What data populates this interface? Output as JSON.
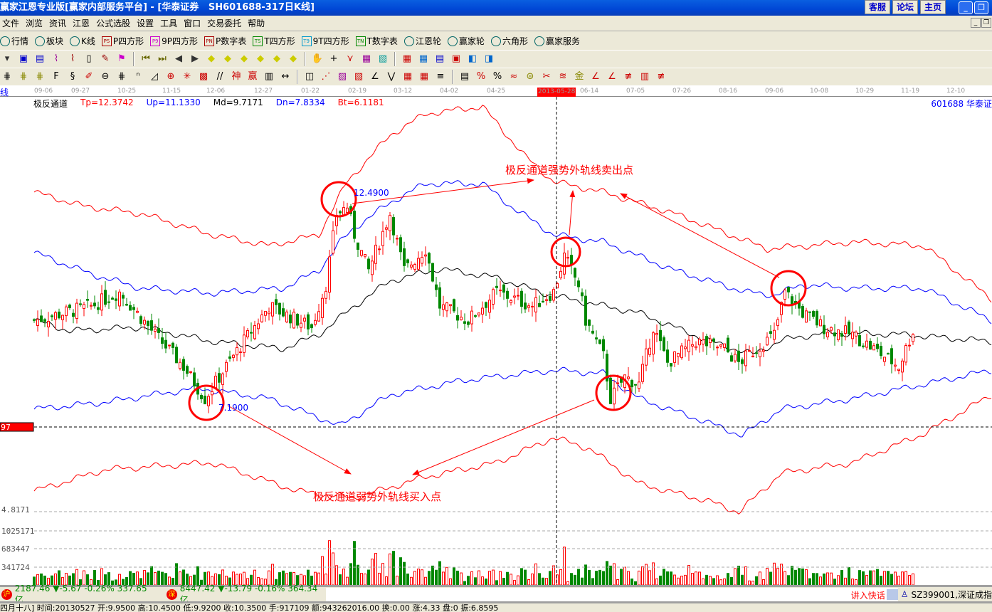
{
  "window": {
    "title": "赢家江恩专业版[赢家内部服务平台] - [华泰证券   SH601688-317日K线]",
    "buttons": [
      "客服",
      "论坛",
      "主页"
    ]
  },
  "menu": [
    "文件",
    "浏览",
    "资讯",
    "江恩",
    "公式选股",
    "设置",
    "工具",
    "窗口",
    "交易委托",
    "帮助"
  ],
  "toolbar1": [
    {
      "icon": "quote-icon",
      "label": "行情"
    },
    {
      "icon": "sector-icon",
      "label": "板块"
    },
    {
      "icon": "kline-icon",
      "label": "K线"
    },
    {
      "icon": "PS",
      "label": "P四方形"
    },
    {
      "icon": "P9",
      "label": "9P四方形"
    },
    {
      "icon": "PN",
      "label": "P数字表"
    },
    {
      "icon": "TS",
      "label": "T四方形"
    },
    {
      "icon": "T9",
      "label": "9T四方形"
    },
    {
      "icon": "TN",
      "label": "T数字表"
    },
    {
      "icon": "gann-wheel-icon",
      "label": "江恩轮"
    },
    {
      "icon": "winner-wheel-icon",
      "label": "赢家轮"
    },
    {
      "icon": "hexagon-icon",
      "label": "六角形"
    },
    {
      "icon": "dollar-icon",
      "label": "赢家服务"
    }
  ],
  "date_axis": {
    "ticks": [
      "09-06",
      "09-27",
      "10-25",
      "11-15",
      "12-06",
      "12-27",
      "01-22",
      "02-19",
      "03-12",
      "04-02",
      "04-25",
      "06-14",
      "07-05",
      "07-26",
      "08-16",
      "09-06",
      "10-08",
      "10-29",
      "11-19",
      "12-10"
    ],
    "cursor_date": "2013-05-28"
  },
  "indicator": {
    "name": "极反通道",
    "tp": "Tp=12.3742",
    "up": "Up=11.1330",
    "md": "Md=9.7171",
    "dn": "Dn=7.8334",
    "bt": "Bt=6.1181",
    "stock": "601688  华泰证",
    "left_label": "线"
  },
  "colors": {
    "up_candle": "#ff0000",
    "down_candle": "#008000",
    "tp_bt": "#ff0000",
    "up_dn": "#0000ff",
    "md": "#000000"
  },
  "annotations": {
    "sell_text": "极反通道强势外轨线卖出点",
    "buy_text": "极反通道弱势外轨线买入点",
    "high_label": "12.4900",
    "low_label": "7.1900",
    "price_cursor": "97",
    "bottom_price": "4.8171"
  },
  "chart_data": {
    "type": "candlestick",
    "price_keypoints": [
      [
        0,
        9.33
      ],
      [
        16,
        9.68
      ],
      [
        24,
        10.03
      ],
      [
        34,
        8.98
      ],
      [
        42,
        8.19
      ],
      [
        48,
        7.4
      ],
      [
        52,
        7.93
      ],
      [
        56,
        8.45
      ],
      [
        66,
        9.68
      ],
      [
        78,
        9.16
      ],
      [
        82,
        10.21
      ],
      [
        85,
        11.96
      ],
      [
        88,
        12.14
      ],
      [
        90,
        11.44
      ],
      [
        94,
        10.56
      ],
      [
        100,
        11.96
      ],
      [
        104,
        10.56
      ],
      [
        110,
        11.09
      ],
      [
        114,
        9.68
      ],
      [
        122,
        9.33
      ],
      [
        130,
        10.03
      ],
      [
        140,
        9.68
      ],
      [
        146,
        10.03
      ],
      [
        149,
        10.91
      ],
      [
        153,
        10.21
      ],
      [
        155,
        9.33
      ],
      [
        160,
        8.45
      ],
      [
        162,
        7.4
      ],
      [
        166,
        7.93
      ],
      [
        170,
        7.75
      ],
      [
        174,
        9.16
      ],
      [
        178,
        8.28
      ],
      [
        186,
        8.81
      ],
      [
        194,
        8.63
      ],
      [
        198,
        8.28
      ],
      [
        208,
        8.98
      ],
      [
        211,
        10.03
      ],
      [
        216,
        9.51
      ],
      [
        222,
        9.16
      ],
      [
        230,
        8.98
      ],
      [
        236,
        8.63
      ],
      [
        243,
        8.19
      ],
      [
        247,
        9.07
      ]
    ],
    "bands": {
      "Tp": [
        [
          0,
          12.49
        ],
        [
          14,
          12.14
        ],
        [
          30,
          11.96
        ],
        [
          50,
          11.44
        ],
        [
          66,
          11.17
        ],
        [
          80,
          11.44
        ],
        [
          88,
          12.75
        ],
        [
          100,
          13.89
        ],
        [
          110,
          14.42
        ],
        [
          126,
          14.6
        ],
        [
          138,
          13.37
        ],
        [
          146,
          12.75
        ],
        [
          160,
          12.49
        ],
        [
          180,
          11.96
        ],
        [
          206,
          11.09
        ],
        [
          230,
          11.26
        ],
        [
          250,
          11.17
        ],
        [
          269,
          9.86
        ]
      ],
      "Up": [
        [
          0,
          11.0
        ],
        [
          16,
          10.47
        ],
        [
          30,
          10.12
        ],
        [
          50,
          10.0
        ],
        [
          70,
          10.12
        ],
        [
          80,
          10.56
        ],
        [
          86,
          11.26
        ],
        [
          90,
          11.61
        ],
        [
          100,
          12.23
        ],
        [
          110,
          12.7
        ],
        [
          126,
          12.7
        ],
        [
          134,
          12.14
        ],
        [
          146,
          11.44
        ],
        [
          160,
          11.26
        ],
        [
          180,
          10.56
        ],
        [
          200,
          10.03
        ],
        [
          208,
          9.95
        ],
        [
          216,
          10.21
        ],
        [
          230,
          10.12
        ],
        [
          250,
          10.12
        ],
        [
          269,
          9.33
        ]
      ],
      "Md": [
        [
          0,
          9.33
        ],
        [
          10,
          9.07
        ],
        [
          30,
          9.16
        ],
        [
          50,
          8.81
        ],
        [
          70,
          8.63
        ],
        [
          80,
          8.98
        ],
        [
          90,
          9.68
        ],
        [
          100,
          10.3
        ],
        [
          114,
          10.6
        ],
        [
          130,
          10.38
        ],
        [
          142,
          10.03
        ],
        [
          150,
          9.86
        ],
        [
          170,
          9.51
        ],
        [
          190,
          8.81
        ],
        [
          202,
          8.49
        ],
        [
          210,
          8.84
        ],
        [
          222,
          9.02
        ],
        [
          244,
          8.98
        ],
        [
          269,
          8.81
        ]
      ],
      "Dn": [
        [
          0,
          7.14
        ],
        [
          20,
          7.31
        ],
        [
          46,
          7.66
        ],
        [
          66,
          7.4
        ],
        [
          86,
          6.73
        ],
        [
          100,
          7.49
        ],
        [
          120,
          7.84
        ],
        [
          146,
          8.1
        ],
        [
          160,
          8.02
        ],
        [
          170,
          7.4
        ],
        [
          190,
          6.79
        ],
        [
          199,
          6.49
        ],
        [
          210,
          7.14
        ],
        [
          230,
          7.4
        ],
        [
          250,
          7.75
        ],
        [
          269,
          8.1
        ]
      ],
      "Bt": [
        [
          0,
          5.12
        ],
        [
          20,
          5.65
        ],
        [
          50,
          5.82
        ],
        [
          74,
          5.12
        ],
        [
          90,
          4.95
        ],
        [
          110,
          5.47
        ],
        [
          130,
          5.82
        ],
        [
          146,
          6.44
        ],
        [
          156,
          6.17
        ],
        [
          170,
          5.3
        ],
        [
          190,
          4.86
        ],
        [
          198,
          4.6
        ],
        [
          210,
          5.56
        ],
        [
          230,
          5.82
        ],
        [
          250,
          6.53
        ],
        [
          269,
          7.49
        ]
      ]
    },
    "volume_ticks": [
      "1025171",
      "683447",
      "341724"
    ]
  },
  "status": {
    "sh": {
      "badge": "沪",
      "text": "2187.46 ▼-5.67 -0.26% 337.65亿"
    },
    "sz": {
      "badge": "深",
      "text": "8447.42 ▼-13.79 -0.16% 364.34亿"
    },
    "quick_input": "讲入快话",
    "ticker": "SZ399001,深证成指",
    "bar_info": "四月十八] 时间:20130527 开:9.9500 高:10.4500 低:9.9200 收:10.3500 手:917109 额:943262016.00 换:0.00 涨:4.33 盘:0 振:6.8595"
  }
}
